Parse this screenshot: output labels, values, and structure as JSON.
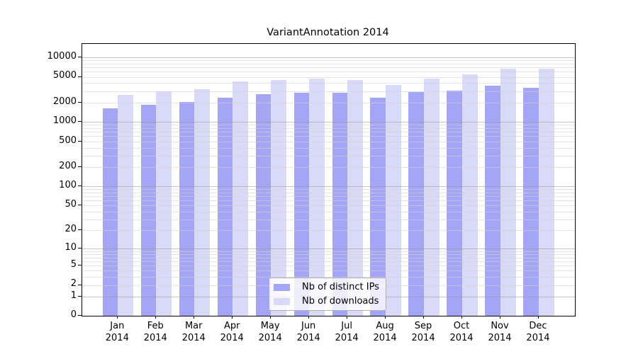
{
  "chart_data": {
    "type": "bar",
    "title": "VariantAnnotation 2014",
    "categories": [
      "Jan",
      "Feb",
      "Mar",
      "Apr",
      "May",
      "Jun",
      "Jul",
      "Aug",
      "Sep",
      "Oct",
      "Nov",
      "Dec"
    ],
    "year_label": "2014",
    "series": [
      {
        "name": "Nb of distinct IPs",
        "color": "#a5a5f5",
        "values": [
          1640,
          1860,
          2040,
          2400,
          2690,
          2830,
          2800,
          2350,
          2870,
          3080,
          3620,
          3390
        ]
      },
      {
        "name": "Nb of downloads",
        "color": "#d9d9f8",
        "values": [
          2650,
          2950,
          3200,
          4270,
          4500,
          4730,
          4500,
          3740,
          4720,
          5400,
          6730,
          6760
        ]
      }
    ],
    "y_scale": "log10(1+x)",
    "y_ticks": [
      0,
      1,
      2,
      5,
      10,
      20,
      50,
      100,
      200,
      500,
      1000,
      2000,
      5000,
      10000
    ],
    "ylim": [
      0,
      16000
    ],
    "xlabel": "",
    "ylabel": "",
    "grid": true,
    "legend_position": "bottom-center-inside",
    "colors": {
      "grid_major": "rgba(150,150,150,0.55)",
      "grid_minor": "rgba(210,210,210,0.6)",
      "axis": "#000000",
      "background": "#ffffff"
    }
  }
}
